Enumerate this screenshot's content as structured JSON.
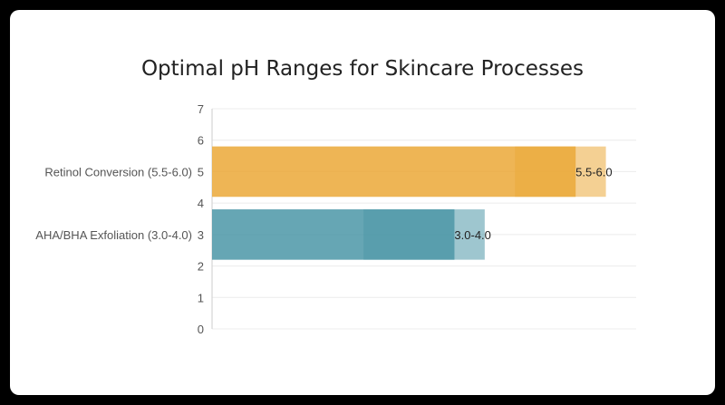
{
  "chart_data": {
    "type": "bar",
    "orientation": "horizontal",
    "title": "Optimal pH Ranges for Skincare Processes",
    "xlabel": "",
    "ylabel": "",
    "y_ticks": [
      0,
      1,
      2,
      3,
      4,
      5,
      6,
      7
    ],
    "y_range": [
      0,
      7
    ],
    "x_range": [
      0,
      7
    ],
    "grid": true,
    "legend": "none",
    "categories": [
      {
        "label": "Retinol Conversion (5.5-6.0)",
        "y": 5,
        "value": 6.0,
        "range_start": 5.5,
        "range_end": 6.0,
        "data_label": "5.5-6.0",
        "color": "#EBA93A"
      },
      {
        "label": "AHA/BHA Exfoliation (3.0-4.0)",
        "y": 3,
        "value": 4.0,
        "range_start": 3.0,
        "range_end": 4.0,
        "data_label": "3.0-4.0",
        "color": "#4F98A8"
      }
    ]
  }
}
